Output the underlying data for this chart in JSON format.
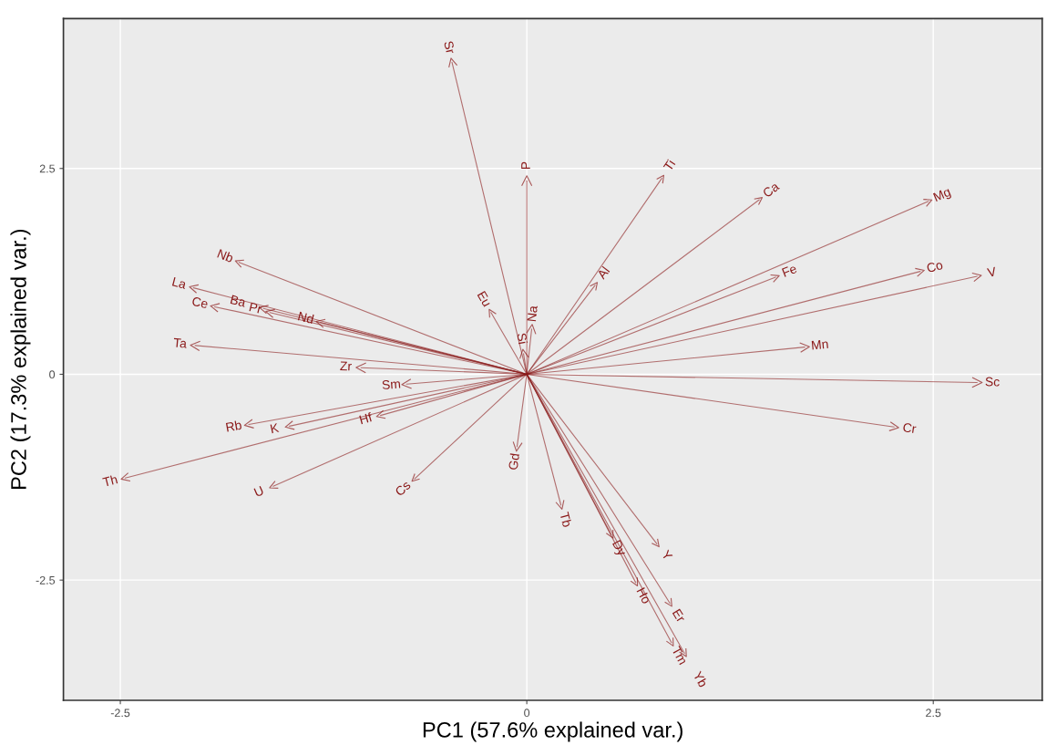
{
  "chart_data": {
    "type": "scatter",
    "xlabel": "PC1 (57.6% explained var.)",
    "ylabel": "PC2 (17.3% explained var.)",
    "xlim": [
      -2.85,
      3.17
    ],
    "ylim": [
      -3.96,
      4.32
    ],
    "xticks": [
      -2.5,
      0,
      2.5
    ],
    "yticks": [
      -2.5,
      0,
      2.5
    ],
    "grid": true,
    "series": [
      {
        "color": "#8b1a1a",
        "x": [
          -0.46,
          0.0,
          0.83,
          1.43,
          2.47,
          -1.77,
          -2.05,
          -1.92,
          -1.62,
          -1.58,
          -1.27,
          -0.22,
          0.03,
          -0.02,
          0.42,
          1.53,
          2.42,
          2.77,
          1.71,
          -2.04,
          -1.02,
          -0.74,
          2.77,
          2.26,
          -1.71,
          -1.46,
          -0.9,
          -2.47,
          -1.56,
          -0.69,
          -0.06,
          0.21,
          0.52,
          0.8,
          0.67,
          0.88,
          0.89,
          0.97
        ],
        "values": [
          3.79,
          2.35,
          2.38,
          2.12,
          2.1,
          1.36,
          1.05,
          0.82,
          0.8,
          0.75,
          0.63,
          0.75,
          0.55,
          0.25,
          1.08,
          1.18,
          1.25,
          1.19,
          0.33,
          0.35,
          0.08,
          -0.12,
          -0.1,
          -0.64,
          -0.61,
          -0.63,
          -0.5,
          -1.26,
          -1.36,
          -1.27,
          -0.88,
          -1.59,
          -1.95,
          -2.06,
          -2.53,
          -2.78,
          -3.26,
          -3.39
        ]
      }
    ],
    "annotations": [
      {
        "text": "Sr",
        "x": -0.46,
        "y": 3.79
      },
      {
        "text": "P",
        "x": 0.0,
        "y": 2.35
      },
      {
        "text": "Ti",
        "x": 0.83,
        "y": 2.38
      },
      {
        "text": "Ca",
        "x": 1.43,
        "y": 2.12
      },
      {
        "text": "Mg",
        "x": 2.47,
        "y": 2.1
      },
      {
        "text": "Nb",
        "x": -1.77,
        "y": 1.36
      },
      {
        "text": "La",
        "x": -2.05,
        "y": 1.05
      },
      {
        "text": "Ce",
        "x": -1.92,
        "y": 0.82
      },
      {
        "text": "Ba",
        "x": -1.62,
        "y": 0.8
      },
      {
        "text": "Pr",
        "x": -1.58,
        "y": 0.75
      },
      {
        "text": "Nd",
        "x": -1.27,
        "y": 0.63
      },
      {
        "text": "Eu",
        "x": -0.22,
        "y": 0.75
      },
      {
        "text": "Na",
        "x": 0.03,
        "y": 0.55
      },
      {
        "text": "Si",
        "x": -0.02,
        "y": 0.25
      },
      {
        "text": "Al",
        "x": 0.42,
        "y": 1.08
      },
      {
        "text": "Fe",
        "x": 1.53,
        "y": 1.18
      },
      {
        "text": "Co",
        "x": 2.42,
        "y": 1.25
      },
      {
        "text": "V",
        "x": 2.77,
        "y": 1.19
      },
      {
        "text": "Mn",
        "x": 1.71,
        "y": 0.33
      },
      {
        "text": "Ta",
        "x": -2.04,
        "y": 0.35
      },
      {
        "text": "Zr",
        "x": -1.02,
        "y": 0.08
      },
      {
        "text": "Sm",
        "x": -0.74,
        "y": -0.12
      },
      {
        "text": "Sc",
        "x": 2.77,
        "y": -0.1
      },
      {
        "text": "Cr",
        "x": 2.26,
        "y": -0.64
      },
      {
        "text": "Rb",
        "x": -1.71,
        "y": -0.61
      },
      {
        "text": "K",
        "x": -1.46,
        "y": -0.63
      },
      {
        "text": "Hf",
        "x": -0.9,
        "y": -0.5
      },
      {
        "text": "Th",
        "x": -2.47,
        "y": -1.26
      },
      {
        "text": "U",
        "x": -1.56,
        "y": -1.36
      },
      {
        "text": "Cs",
        "x": -0.69,
        "y": -1.27
      },
      {
        "text": "Gd",
        "x": -0.06,
        "y": -0.88
      },
      {
        "text": "Tb",
        "x": 0.21,
        "y": -1.59
      },
      {
        "text": "Dy",
        "x": 0.52,
        "y": -1.95
      },
      {
        "text": "Y",
        "x": 0.8,
        "y": -2.06
      },
      {
        "text": "Ho",
        "x": 0.67,
        "y": -2.53
      },
      {
        "text": "Er",
        "x": 0.88,
        "y": -2.78
      },
      {
        "text": "Tm",
        "x": 0.89,
        "y": -3.26
      },
      {
        "text": "Yb",
        "x": 0.97,
        "y": -3.39
      }
    ]
  }
}
